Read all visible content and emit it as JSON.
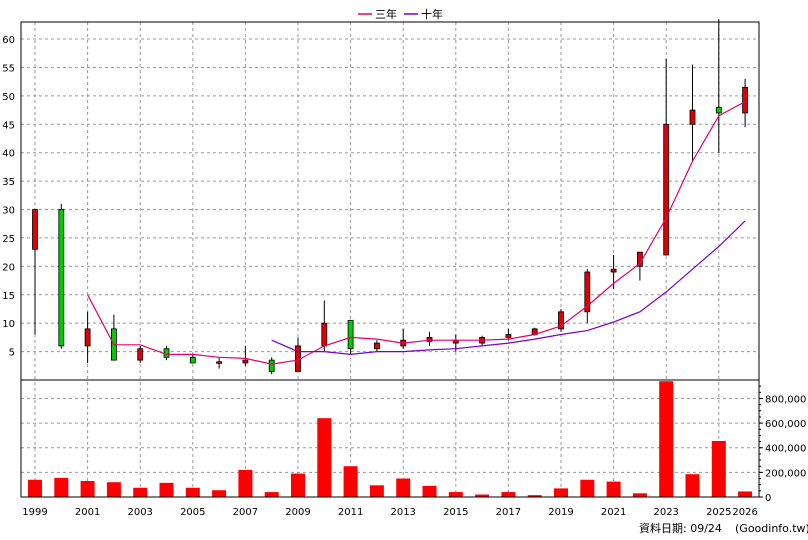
{
  "chart_data": {
    "type": "candlestick+volume",
    "legend": [
      {
        "name": "三年",
        "color": "#e6006e"
      },
      {
        "name": "十年",
        "color": "#7a00cc"
      }
    ],
    "x_ticks": [
      "1999",
      "2001",
      "2003",
      "2005",
      "2007",
      "2009",
      "2011",
      "2013",
      "2015",
      "2017",
      "2019",
      "2021",
      "2023",
      "2025",
      "2026"
    ],
    "y_price_ticks": [
      5,
      10,
      15,
      20,
      25,
      30,
      35,
      40,
      45,
      50,
      55,
      60
    ],
    "y_price_range": [
      0,
      63
    ],
    "y_volume_ticks": [
      "0",
      "200,000",
      "400,000",
      "600,000",
      "800,000"
    ],
    "y_volume_range": [
      0,
      950000
    ],
    "grid": true,
    "up_color": "#e00000",
    "down_color": "#00cc00",
    "candles": [
      {
        "year": "1999",
        "open": 23,
        "close": 30,
        "high": 30,
        "low": 8
      },
      {
        "year": "2000",
        "open": 30,
        "close": 6,
        "high": 31,
        "low": 5.5
      },
      {
        "year": "2001",
        "open": 6,
        "close": 9,
        "high": 12,
        "low": 3
      },
      {
        "year": "2002",
        "open": 9,
        "close": 3.5,
        "high": 11.5,
        "low": 3.5
      },
      {
        "year": "2003",
        "open": 3.5,
        "close": 5.5,
        "high": 6,
        "low": 3
      },
      {
        "year": "2004",
        "open": 5.5,
        "close": 4,
        "high": 6,
        "low": 3.5
      },
      {
        "year": "2005",
        "open": 4,
        "close": 3,
        "high": 4.5,
        "low": 3
      },
      {
        "year": "2006",
        "open": 3,
        "close": 3.2,
        "high": 4,
        "low": 2
      },
      {
        "year": "2007",
        "open": 3,
        "close": 3.5,
        "high": 6,
        "low": 2.5
      },
      {
        "year": "2008",
        "open": 3.5,
        "close": 1.5,
        "high": 4,
        "low": 1
      },
      {
        "year": "2009",
        "open": 1.5,
        "close": 6,
        "high": 7.5,
        "low": 1.5
      },
      {
        "year": "2010",
        "open": 6,
        "close": 10,
        "high": 14,
        "low": 5
      },
      {
        "year": "2011",
        "open": 10.5,
        "close": 5.5,
        "high": 10.5,
        "low": 4.5
      },
      {
        "year": "2012",
        "open": 5.5,
        "close": 6.5,
        "high": 7,
        "low": 5
      },
      {
        "year": "2013",
        "open": 6,
        "close": 7,
        "high": 9,
        "low": 5.5
      },
      {
        "year": "2014",
        "open": 6.8,
        "close": 7.5,
        "high": 8.5,
        "low": 6
      },
      {
        "year": "2015",
        "open": 6.5,
        "close": 7,
        "high": 8,
        "low": 5
      },
      {
        "year": "2016",
        "open": 6.5,
        "close": 7.5,
        "high": 7.8,
        "low": 6
      },
      {
        "year": "2017",
        "open": 7.5,
        "close": 8,
        "high": 9,
        "low": 7
      },
      {
        "year": "2018",
        "open": 8,
        "close": 9,
        "high": 9.2,
        "low": 7.8
      },
      {
        "year": "2019",
        "open": 9,
        "close": 12,
        "high": 12.5,
        "low": 8.5
      },
      {
        "year": "2020",
        "open": 12,
        "close": 19,
        "high": 19.5,
        "low": 10
      },
      {
        "year": "2021",
        "open": 19,
        "close": 19.5,
        "high": 22,
        "low": 16
      },
      {
        "year": "2022",
        "open": 20,
        "close": 22.5,
        "high": 22.5,
        "low": 17.5
      },
      {
        "year": "2023",
        "open": 22,
        "close": 45,
        "high": 56.5,
        "low": 22
      },
      {
        "year": "2024",
        "open": 45,
        "close": 47.5,
        "high": 55.5,
        "low": 38.5
      },
      {
        "year": "2025",
        "open": 48,
        "close": 47,
        "high": 63.5,
        "low": 40
      },
      {
        "year": "2026",
        "open": 47,
        "close": 51.5,
        "high": 53,
        "low": 44.5
      }
    ],
    "ma_3yr": [
      {
        "year": "2001",
        "value": 15
      },
      {
        "year": "2002",
        "value": 6.2
      },
      {
        "year": "2003",
        "value": 6.2
      },
      {
        "year": "2004",
        "value": 4.5
      },
      {
        "year": "2005",
        "value": 4.5
      },
      {
        "year": "2006",
        "value": 4
      },
      {
        "year": "2007",
        "value": 3.8
      },
      {
        "year": "2008",
        "value": 2.8
      },
      {
        "year": "2009",
        "value": 3.5
      },
      {
        "year": "2010",
        "value": 6
      },
      {
        "year": "2011",
        "value": 7.5
      },
      {
        "year": "2012",
        "value": 7.2
      },
      {
        "year": "2013",
        "value": 6.5
      },
      {
        "year": "2014",
        "value": 7
      },
      {
        "year": "2015",
        "value": 7
      },
      {
        "year": "2016",
        "value": 7
      },
      {
        "year": "2017",
        "value": 7.2
      },
      {
        "year": "2018",
        "value": 8
      },
      {
        "year": "2019",
        "value": 9.5
      },
      {
        "year": "2020",
        "value": 13
      },
      {
        "year": "2021",
        "value": 17
      },
      {
        "year": "2022",
        "value": 20.5
      },
      {
        "year": "2023",
        "value": 28.5
      },
      {
        "year": "2024",
        "value": 38.5
      },
      {
        "year": "2025",
        "value": 46.5
      },
      {
        "year": "2026",
        "value": 49
      }
    ],
    "ma_10yr": [
      {
        "year": "2008",
        "value": 7
      },
      {
        "year": "2009",
        "value": 5
      },
      {
        "year": "2010",
        "value": 5
      },
      {
        "year": "2011",
        "value": 4.5
      },
      {
        "year": "2012",
        "value": 5
      },
      {
        "year": "2013",
        "value": 5
      },
      {
        "year": "2014",
        "value": 5.3
      },
      {
        "year": "2015",
        "value": 5.5
      },
      {
        "year": "2016",
        "value": 6
      },
      {
        "year": "2017",
        "value": 6.5
      },
      {
        "year": "2018",
        "value": 7.2
      },
      {
        "year": "2019",
        "value": 8
      },
      {
        "year": "2020",
        "value": 8.7
      },
      {
        "year": "2021",
        "value": 10.2
      },
      {
        "year": "2022",
        "value": 12
      },
      {
        "year": "2023",
        "value": 15.5
      },
      {
        "year": "2024",
        "value": 19.5
      },
      {
        "year": "2025",
        "value": 23.5
      },
      {
        "year": "2026",
        "value": 28
      }
    ],
    "volume": [
      {
        "year": "1999",
        "value": 140000
      },
      {
        "year": "2000",
        "value": 155000
      },
      {
        "year": "2001",
        "value": 130000
      },
      {
        "year": "2002",
        "value": 120000
      },
      {
        "year": "2003",
        "value": 75000
      },
      {
        "year": "2004",
        "value": 115000
      },
      {
        "year": "2005",
        "value": 75000
      },
      {
        "year": "2006",
        "value": 55000
      },
      {
        "year": "2007",
        "value": 220000
      },
      {
        "year": "2008",
        "value": 40000
      },
      {
        "year": "2009",
        "value": 190000
      },
      {
        "year": "2010",
        "value": 640000
      },
      {
        "year": "2011",
        "value": 250000
      },
      {
        "year": "2012",
        "value": 95000
      },
      {
        "year": "2013",
        "value": 150000
      },
      {
        "year": "2014",
        "value": 90000
      },
      {
        "year": "2015",
        "value": 40000
      },
      {
        "year": "2016",
        "value": 20000
      },
      {
        "year": "2017",
        "value": 40000
      },
      {
        "year": "2018",
        "value": 15000
      },
      {
        "year": "2019",
        "value": 70000
      },
      {
        "year": "2020",
        "value": 140000
      },
      {
        "year": "2021",
        "value": 125000
      },
      {
        "year": "2022",
        "value": 30000
      },
      {
        "year": "2023",
        "value": 940000
      },
      {
        "year": "2024",
        "value": 185000
      },
      {
        "year": "2025",
        "value": 455000
      },
      {
        "year": "2026",
        "value": 45000
      }
    ]
  },
  "footer": {
    "date_label": "資料日期: 09/24",
    "source": "(Goodinfo.tw)"
  }
}
